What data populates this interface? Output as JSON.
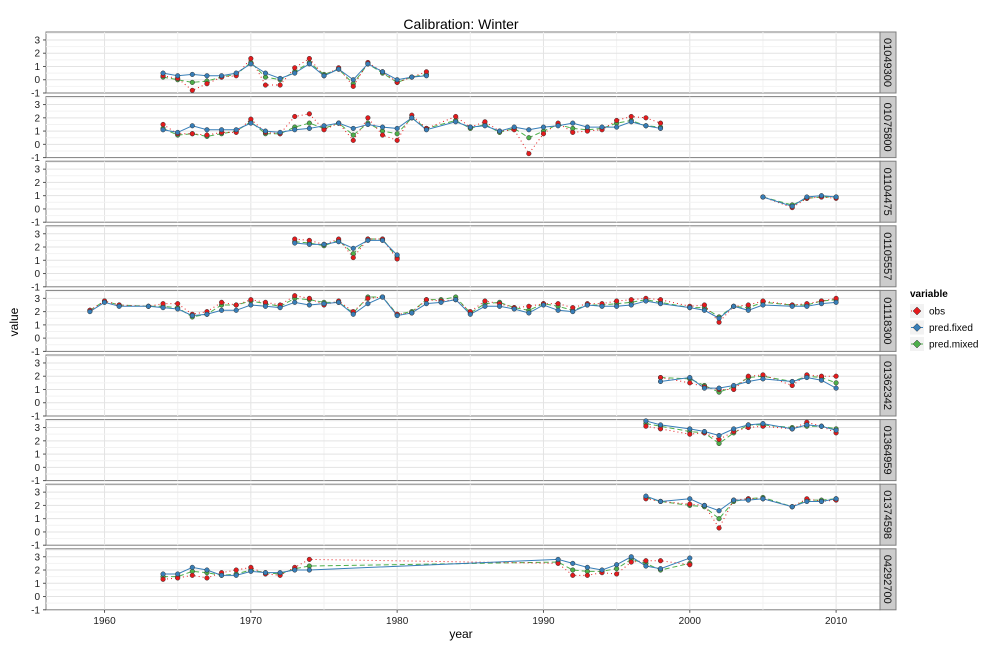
{
  "chart_data": {
    "type": "line",
    "title": "Calibration: Winter",
    "xlabel": "year",
    "ylabel": "value",
    "xlim": [
      1956,
      2013
    ],
    "ylim": [
      -1,
      3.6
    ],
    "x_ticks": [
      1960,
      1970,
      1980,
      1990,
      2000,
      2010
    ],
    "y_ticks": [
      -1,
      0,
      1,
      2,
      3
    ],
    "grid": true,
    "legend": {
      "title": "variable",
      "placement": "right",
      "entries": [
        {
          "name": "obs",
          "color": "#E41A1C",
          "dash": "1,3"
        },
        {
          "name": "pred.fixed",
          "color": "#377EB8",
          "dash": ""
        },
        {
          "name": "pred.mixed",
          "color": "#4DAF4A",
          "dash": "5,3"
        }
      ]
    },
    "panels": [
      {
        "label": "01049300",
        "x": [
          1964,
          1965,
          1966,
          1967,
          1968,
          1969,
          1970,
          1971,
          1972,
          1973,
          1974,
          1975,
          1976,
          1977,
          1978,
          1979,
          1980,
          1981,
          1982
        ],
        "series": [
          {
            "name": "obs",
            "values": [
              0.3,
              0.1,
              -0.8,
              -0.3,
              0.2,
              0.3,
              1.6,
              -0.4,
              -0.4,
              0.9,
              1.6,
              0.3,
              0.9,
              -0.5,
              1.3,
              0.6,
              -0.2,
              0.2,
              0.6
            ]
          },
          {
            "name": "pred.fixed",
            "values": [
              0.5,
              0.3,
              0.4,
              0.3,
              0.3,
              0.5,
              1.2,
              0.5,
              0.1,
              0.5,
              1.2,
              0.3,
              0.8,
              0.0,
              1.2,
              0.6,
              0.0,
              0.2,
              0.3
            ]
          },
          {
            "name": "pred.mixed",
            "values": [
              0.2,
              0.0,
              -0.2,
              -0.1,
              0.2,
              0.4,
              1.3,
              0.2,
              0.0,
              0.6,
              1.3,
              0.4,
              0.8,
              -0.3,
              1.2,
              0.5,
              -0.2,
              0.2,
              0.4
            ]
          }
        ]
      },
      {
        "label": "01075800",
        "x": [
          1964,
          1965,
          1966,
          1967,
          1968,
          1969,
          1970,
          1971,
          1972,
          1973,
          1974,
          1975,
          1976,
          1977,
          1978,
          1979,
          1980,
          1981,
          1982,
          1984,
          1985,
          1986,
          1987,
          1988,
          1989,
          1990,
          1991,
          1992,
          1993,
          1994,
          1995,
          1996,
          1997,
          1998
        ],
        "series": [
          {
            "name": "obs",
            "values": [
              1.5,
              0.8,
              0.8,
              0.7,
              0.9,
              0.9,
              1.9,
              0.9,
              0.8,
              2.1,
              2.3,
              1.1,
              1.6,
              0.3,
              2.0,
              0.7,
              0.3,
              2.2,
              1.2,
              2.1,
              1.3,
              1.7,
              1.0,
              1.1,
              -0.7,
              0.8,
              1.6,
              0.9,
              1.0,
              1.1,
              1.8,
              2.1,
              2.0,
              1.6
            ]
          },
          {
            "name": "pred.fixed",
            "values": [
              1.1,
              0.9,
              1.4,
              1.1,
              1.1,
              1.1,
              1.6,
              1.0,
              0.9,
              1.1,
              1.2,
              1.4,
              1.6,
              1.2,
              1.5,
              1.3,
              1.2,
              2.0,
              1.1,
              1.7,
              1.3,
              1.4,
              1.0,
              1.3,
              1.1,
              1.3,
              1.4,
              1.6,
              1.3,
              1.3,
              1.3,
              1.7,
              1.4,
              1.2
            ]
          },
          {
            "name": "pred.mixed",
            "values": [
              1.2,
              0.7,
              0.8,
              0.6,
              0.8,
              1.0,
              1.7,
              0.8,
              0.8,
              1.3,
              1.6,
              1.2,
              1.6,
              0.7,
              1.6,
              1.0,
              0.8,
              2.0,
              1.2,
              1.8,
              1.2,
              1.5,
              0.9,
              1.2,
              0.5,
              1.0,
              1.5,
              1.2,
              1.1,
              1.2,
              1.6,
              1.8,
              1.4,
              1.3
            ]
          }
        ]
      },
      {
        "label": "01104475",
        "x": [
          2005,
          2007,
          2008,
          2009,
          2010
        ],
        "series": [
          {
            "name": "obs",
            "values": [
              0.9,
              0.1,
              0.8,
              0.9,
              0.8
            ]
          },
          {
            "name": "pred.fixed",
            "values": [
              0.9,
              0.2,
              0.9,
              1.0,
              0.9
            ]
          },
          {
            "name": "pred.mixed",
            "values": [
              0.9,
              0.3,
              0.8,
              0.9,
              0.9
            ]
          }
        ]
      },
      {
        "label": "01105557",
        "x": [
          1973,
          1974,
          1975,
          1976,
          1977,
          1978,
          1979,
          1980
        ],
        "series": [
          {
            "name": "obs",
            "values": [
              2.6,
              2.5,
              2.2,
              2.6,
              1.2,
              2.6,
              2.6,
              1.1
            ]
          },
          {
            "name": "pred.fixed",
            "values": [
              2.3,
              2.2,
              2.2,
              2.4,
              1.9,
              2.5,
              2.5,
              1.4
            ]
          },
          {
            "name": "pred.mixed",
            "values": [
              2.4,
              2.3,
              2.1,
              2.5,
              1.5,
              2.6,
              2.6,
              1.2
            ]
          }
        ]
      },
      {
        "label": "01118300",
        "x": [
          1959,
          1960,
          1961,
          1963,
          1964,
          1965,
          1966,
          1967,
          1968,
          1969,
          1970,
          1971,
          1972,
          1973,
          1974,
          1975,
          1976,
          1977,
          1978,
          1979,
          1980,
          1981,
          1982,
          1983,
          1984,
          1985,
          1986,
          1987,
          1988,
          1989,
          1990,
          1991,
          1992,
          1993,
          1994,
          1995,
          1996,
          1997,
          1998,
          2000,
          2001,
          2002,
          2003,
          2004,
          2005,
          2007,
          2008,
          2009,
          2010
        ],
        "series": [
          {
            "name": "obs",
            "values": [
              2.1,
              2.8,
              2.5,
              2.4,
              2.6,
              2.6,
              1.8,
              2.0,
              2.7,
              2.5,
              2.9,
              2.7,
              2.5,
              3.2,
              3.0,
              2.5,
              2.8,
              2.0,
              3.0,
              3.1,
              1.8,
              1.9,
              2.9,
              2.8,
              2.9,
              2.0,
              2.8,
              2.6,
              2.3,
              2.4,
              2.6,
              2.6,
              2.3,
              2.6,
              2.6,
              2.8,
              2.9,
              3.0,
              2.9,
              2.4,
              2.5,
              1.2,
              2.4,
              2.5,
              2.8,
              2.5,
              2.6,
              2.8,
              3.0
            ]
          },
          {
            "name": "pred.fixed",
            "values": [
              2.0,
              2.7,
              2.4,
              2.4,
              2.3,
              2.2,
              1.7,
              1.8,
              2.1,
              2.1,
              2.5,
              2.4,
              2.3,
              2.7,
              2.5,
              2.6,
              2.7,
              1.8,
              2.6,
              3.1,
              1.7,
              1.9,
              2.6,
              2.7,
              2.9,
              1.8,
              2.4,
              2.4,
              2.2,
              1.9,
              2.5,
              2.1,
              2.0,
              2.5,
              2.4,
              2.4,
              2.5,
              2.8,
              2.6,
              2.3,
              2.1,
              1.5,
              2.4,
              2.1,
              2.5,
              2.4,
              2.4,
              2.6,
              2.7
            ]
          },
          {
            "name": "pred.mixed",
            "values": [
              2.1,
              2.8,
              2.5,
              2.4,
              2.4,
              2.3,
              1.6,
              1.8,
              2.5,
              2.5,
              2.8,
              2.6,
              2.4,
              3.0,
              2.9,
              2.7,
              2.7,
              1.9,
              3.1,
              3.1,
              1.8,
              2.0,
              2.9,
              2.9,
              3.1,
              1.9,
              2.6,
              2.7,
              2.3,
              2.1,
              2.6,
              2.4,
              2.1,
              2.5,
              2.5,
              2.6,
              2.7,
              2.9,
              2.7,
              2.3,
              2.3,
              1.6,
              2.4,
              2.3,
              2.7,
              2.5,
              2.5,
              2.8,
              2.9
            ]
          }
        ]
      },
      {
        "label": "01362342",
        "x": [
          1998,
          2000,
          2001,
          2002,
          2003,
          2004,
          2005,
          2007,
          2008,
          2009,
          2010
        ],
        "series": [
          {
            "name": "obs",
            "values": [
              1.9,
              1.5,
              1.2,
              1.0,
              1.0,
              2.0,
              2.1,
              1.3,
              2.1,
              2.0,
              2.0
            ]
          },
          {
            "name": "pred.fixed",
            "values": [
              1.6,
              1.9,
              1.1,
              1.1,
              1.3,
              1.6,
              1.8,
              1.6,
              1.9,
              1.7,
              1.1
            ]
          },
          {
            "name": "pred.mixed",
            "values": [
              1.9,
              1.8,
              1.3,
              0.8,
              1.2,
              1.9,
              2.0,
              1.6,
              2.0,
              1.9,
              1.5
            ]
          }
        ]
      },
      {
        "label": "01364959",
        "x": [
          1997,
          1998,
          2000,
          2001,
          2002,
          2003,
          2004,
          2005,
          2007,
          2008,
          2009,
          2010
        ],
        "series": [
          {
            "name": "obs",
            "values": [
              3.1,
              2.9,
              2.5,
              2.6,
              2.1,
              2.7,
              3.0,
              3.1,
              2.9,
              3.4,
              3.1,
              2.6
            ]
          },
          {
            "name": "pred.fixed",
            "values": [
              3.5,
              3.2,
              2.9,
              2.7,
              2.4,
              2.9,
              3.2,
              3.3,
              2.9,
              3.2,
              3.1,
              2.8
            ]
          },
          {
            "name": "pred.mixed",
            "values": [
              3.3,
              3.1,
              2.7,
              2.6,
              1.8,
              2.6,
              3.2,
              3.2,
              3.0,
              3.1,
              3.1,
              2.9
            ]
          }
        ]
      },
      {
        "label": "01374598",
        "x": [
          1997,
          1998,
          2000,
          2001,
          2002,
          2003,
          2004,
          2005,
          2007,
          2008,
          2009,
          2010
        ],
        "series": [
          {
            "name": "obs",
            "values": [
              2.5,
              2.3,
              2.1,
              2.0,
              0.3,
              2.4,
              2.5,
              2.5,
              1.9,
              2.5,
              2.3,
              2.4
            ]
          },
          {
            "name": "pred.fixed",
            "values": [
              2.7,
              2.3,
              2.5,
              2.0,
              1.6,
              2.4,
              2.4,
              2.5,
              1.9,
              2.3,
              2.3,
              2.5
            ]
          },
          {
            "name": "pred.mixed",
            "values": [
              2.6,
              2.3,
              2.0,
              1.9,
              1.0,
              2.3,
              2.5,
              2.6,
              1.9,
              2.4,
              2.4,
              2.5
            ]
          }
        ]
      },
      {
        "label": "04292700",
        "x": [
          1964,
          1965,
          1966,
          1967,
          1968,
          1969,
          1970,
          1971,
          1972,
          1973,
          1974,
          1991,
          1992,
          1993,
          1994,
          1995,
          1996,
          1997,
          1998,
          2000
        ],
        "series": [
          {
            "name": "obs",
            "values": [
              1.3,
              1.4,
              1.6,
              1.4,
              1.8,
              2.0,
              2.2,
              1.7,
              1.6,
              2.2,
              2.8,
              2.5,
              1.6,
              1.6,
              1.8,
              1.7,
              2.6,
              2.7,
              2.7,
              2.4
            ]
          },
          {
            "name": "pred.fixed",
            "values": [
              1.7,
              1.7,
              2.2,
              2.0,
              1.6,
              1.6,
              1.9,
              1.8,
              1.8,
              2.0,
              2.0,
              2.8,
              2.5,
              2.2,
              2.0,
              2.4,
              3.0,
              2.3,
              2.1,
              2.9
            ]
          },
          {
            "name": "pred.mixed",
            "values": [
              1.5,
              1.5,
              1.9,
              1.8,
              1.6,
              1.7,
              2.0,
              1.8,
              1.7,
              2.1,
              2.3,
              2.6,
              2.0,
              1.9,
              1.9,
              2.1,
              2.8,
              2.5,
              2.0,
              2.5
            ]
          }
        ]
      }
    ]
  }
}
